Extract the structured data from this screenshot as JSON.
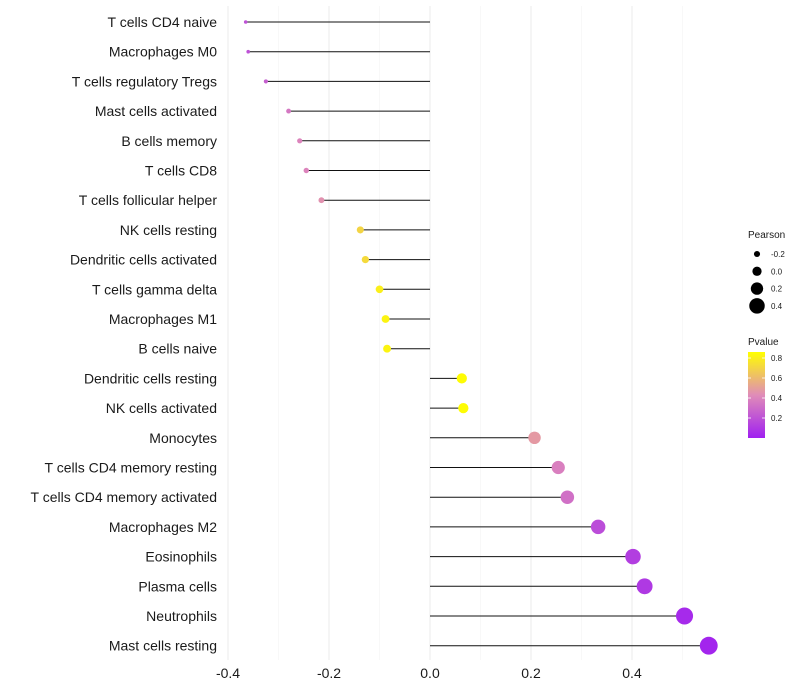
{
  "chart_data": {
    "type": "lollipop",
    "title": "",
    "xlabel": "",
    "ylabel": "",
    "xlim": [
      -0.42,
      0.56
    ],
    "xticks": [
      -0.4,
      -0.2,
      0.0,
      0.2,
      0.4
    ],
    "xtick_labels": [
      "-0.4",
      "-0.2",
      "0.0",
      "0.2",
      "0.4"
    ],
    "grid": "vertical",
    "categories": [
      "T cells CD4 naive",
      "Macrophages M0",
      "T cells regulatory  Tregs",
      "Mast cells activated",
      "B cells memory",
      "T cells CD8",
      "T cells follicular helper",
      "NK cells resting",
      "Dendritic cells activated",
      "T cells gamma delta",
      "Macrophages M1",
      "B cells naive",
      "Dendritic cells resting",
      "NK cells activated",
      "Monocytes",
      "T cells CD4 memory resting",
      "T cells CD4 memory activated",
      "Macrophages M2",
      "Eosinophils",
      "Plasma cells",
      "Neutrophils",
      "Mast cells resting"
    ],
    "values": [
      -0.365,
      -0.36,
      -0.325,
      -0.28,
      -0.258,
      -0.245,
      -0.215,
      -0.138,
      -0.128,
      -0.1,
      -0.088,
      -0.085,
      0.063,
      0.066,
      0.207,
      0.254,
      0.272,
      0.333,
      0.402,
      0.425,
      0.504,
      0.552
    ],
    "pvalues": [
      0.2,
      0.2,
      0.25,
      0.35,
      0.4,
      0.4,
      0.45,
      0.7,
      0.72,
      0.8,
      0.82,
      0.82,
      0.85,
      0.85,
      0.48,
      0.38,
      0.32,
      0.18,
      0.12,
      0.1,
      0.04,
      0.02
    ],
    "legend": {
      "size": {
        "title": "Pearson",
        "entries": [
          "-0.2",
          "0.0",
          "0.2",
          "0.4"
        ],
        "values": [
          -0.2,
          0.0,
          0.2,
          0.4
        ]
      },
      "color": {
        "title": "Pvalue",
        "ticks": [
          "0.8",
          "0.6",
          "0.4",
          "0.2"
        ],
        "tick_values": [
          0.8,
          0.6,
          0.4,
          0.2
        ],
        "range": [
          0.0,
          0.86
        ],
        "low_color": "#a020f0",
        "mid_color": "#e08cb8",
        "high_color": "#ffff00"
      },
      "placement": "right"
    }
  }
}
